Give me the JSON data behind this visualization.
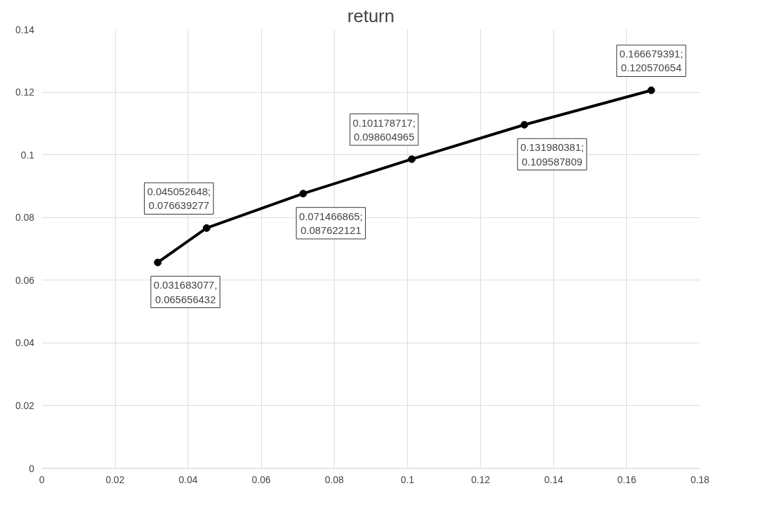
{
  "chart_data": {
    "type": "line",
    "title": "return",
    "x": [
      0.031683077,
      0.045052648,
      0.071466865,
      0.101178717,
      0.131980381,
      0.166679391
    ],
    "series": [
      {
        "color": "#000000",
        "values": [
          0.065656432,
          0.076639277,
          0.087622121,
          0.098604965,
          0.109587809,
          0.120570654
        ],
        "value_labels": [
          "0.031683077,\n0.065656432",
          "0.045052648;\n0.076639277",
          "0.071466865;\n0.087622121",
          "0.101178717;\n0.098604965",
          "0.131980381;\n0.109587809",
          "0.166679391;\n0.120570654"
        ]
      }
    ],
    "xlim": [
      0,
      0.18
    ],
    "xticks": [
      0,
      0.02,
      0.04,
      0.06,
      0.08,
      0.1,
      0.12,
      0.14,
      0.16,
      0.18
    ],
    "ylim": [
      0,
      0.14
    ],
    "yticks": [
      0,
      0.02,
      0.04,
      0.06,
      0.08,
      0.1,
      0.12,
      0.14
    ],
    "grid": true,
    "marker": "circle",
    "line_style": "solid"
  }
}
